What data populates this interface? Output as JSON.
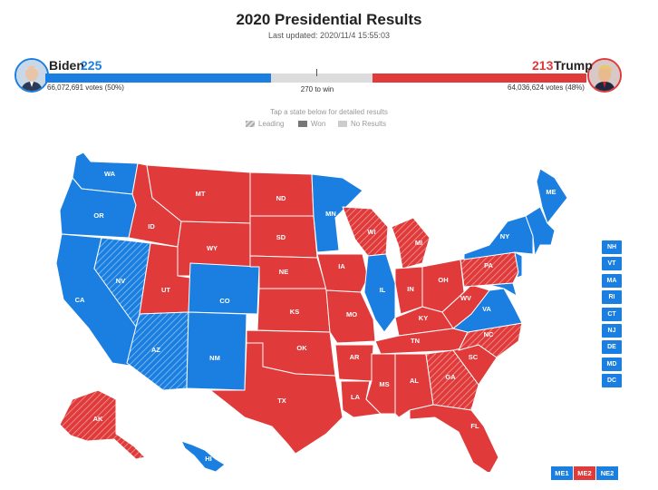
{
  "header": {
    "title": "2020 Presidential Results",
    "updated": "Last updated: 2020/11/4 15:55:03"
  },
  "biden": {
    "name": "Biden",
    "ev": "225",
    "votes": "66,072,691 votes (50%)",
    "color": "#1a7fe0"
  },
  "trump": {
    "name": "Trump",
    "ev": "213",
    "votes": "64,036,624 votes (48%)",
    "color": "#e03a3a"
  },
  "to_win": "270 to win",
  "tap_text": "Tap a state below for detailed results",
  "legend": {
    "leading": "Leading",
    "won": "Won",
    "no_results": "No Results"
  },
  "colors": {
    "dem": "#1a7fe0",
    "rep": "#e03a3a"
  },
  "states": [
    {
      "abbr": "WA",
      "status": "dem-won"
    },
    {
      "abbr": "OR",
      "status": "dem-won"
    },
    {
      "abbr": "CA",
      "status": "dem-won"
    },
    {
      "abbr": "NV",
      "status": "dem-leading"
    },
    {
      "abbr": "ID",
      "status": "rep-won"
    },
    {
      "abbr": "MT",
      "status": "rep-won"
    },
    {
      "abbr": "WY",
      "status": "rep-won"
    },
    {
      "abbr": "UT",
      "status": "rep-won"
    },
    {
      "abbr": "CO",
      "status": "dem-won"
    },
    {
      "abbr": "AZ",
      "status": "dem-leading"
    },
    {
      "abbr": "NM",
      "status": "dem-won"
    },
    {
      "abbr": "ND",
      "status": "rep-won"
    },
    {
      "abbr": "SD",
      "status": "rep-won"
    },
    {
      "abbr": "NE",
      "status": "rep-won"
    },
    {
      "abbr": "KS",
      "status": "rep-won"
    },
    {
      "abbr": "OK",
      "status": "rep-won"
    },
    {
      "abbr": "TX",
      "status": "rep-won"
    },
    {
      "abbr": "MN",
      "status": "dem-won"
    },
    {
      "abbr": "IA",
      "status": "rep-won"
    },
    {
      "abbr": "MO",
      "status": "rep-won"
    },
    {
      "abbr": "AR",
      "status": "rep-won"
    },
    {
      "abbr": "LA",
      "status": "rep-won"
    },
    {
      "abbr": "WI",
      "status": "rep-leading"
    },
    {
      "abbr": "IL",
      "status": "dem-won"
    },
    {
      "abbr": "MI",
      "status": "rep-leading"
    },
    {
      "abbr": "IN",
      "status": "rep-won"
    },
    {
      "abbr": "OH",
      "status": "rep-won"
    },
    {
      "abbr": "KY",
      "status": "rep-won"
    },
    {
      "abbr": "TN",
      "status": "rep-won"
    },
    {
      "abbr": "MS",
      "status": "rep-won"
    },
    {
      "abbr": "AL",
      "status": "rep-won"
    },
    {
      "abbr": "GA",
      "status": "rep-leading"
    },
    {
      "abbr": "FL",
      "status": "rep-won"
    },
    {
      "abbr": "SC",
      "status": "rep-won"
    },
    {
      "abbr": "NC",
      "status": "rep-leading"
    },
    {
      "abbr": "VA",
      "status": "dem-won"
    },
    {
      "abbr": "WV",
      "status": "rep-won"
    },
    {
      "abbr": "PA",
      "status": "rep-leading"
    },
    {
      "abbr": "NY",
      "status": "dem-won"
    },
    {
      "abbr": "ME",
      "status": "dem-won"
    },
    {
      "abbr": "AK",
      "status": "rep-leading"
    },
    {
      "abbr": "HI",
      "status": "dem-won"
    }
  ],
  "small_states": [
    "NH",
    "VT",
    "MA",
    "RI",
    "CT",
    "NJ",
    "DE",
    "MD",
    "DC"
  ],
  "maine_districts": [
    {
      "label": "ME1",
      "color": "#1a7fe0"
    },
    {
      "label": "ME2",
      "color": "#e03a3a"
    },
    {
      "label": "NE2",
      "color": "#1a7fe0"
    }
  ]
}
